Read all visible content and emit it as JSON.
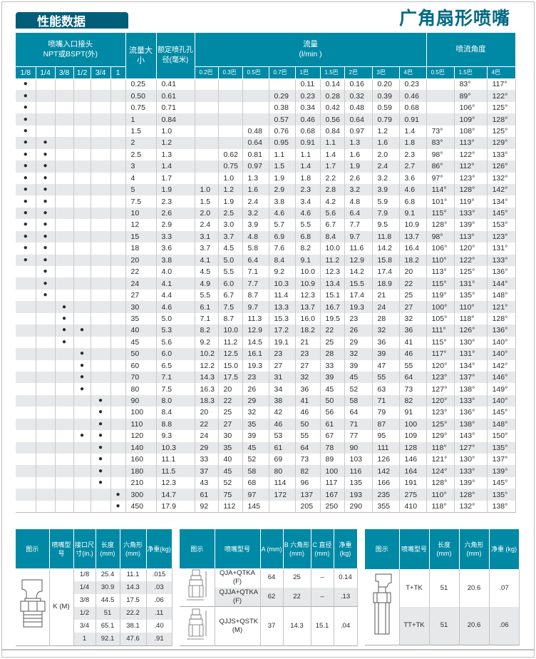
{
  "header": {
    "section_tab": "性能数据",
    "product_title": "广角扇形喷嘴"
  },
  "colors": {
    "header_teal": "#0089a5",
    "tab_dark": "#005e78",
    "title_teal": "#006a82",
    "row_alt": "#e7e8ea"
  },
  "main": {
    "inlet_header": "喷嘴入口接头",
    "inlet_header2": "NPT或BSPT(外)",
    "capacity_header": "流量大小",
    "orifice_header": "额定喷孔孔径(毫米)",
    "flow_header": "流量",
    "flow_unit": "(l/min )",
    "angle_header": "喷流角度",
    "inlet_sizes": [
      "1/8",
      "1/4",
      "3/8",
      "1/2",
      "3/4",
      "1"
    ],
    "flow_pressures": [
      "0.2巴",
      "0.3巴",
      "0.5巴",
      "0.7巴",
      "1巴",
      "1.5巴",
      "2巴",
      "3巴",
      "4巴"
    ],
    "angle_pressures": [
      "0.5巴",
      "1.5巴",
      "4巴"
    ],
    "dot_symbol": "●",
    "rows": [
      {
        "inlet": [
          1,
          0,
          0,
          0,
          0,
          0
        ],
        "size": "0.25",
        "orifice": "0.41",
        "flow": [
          "",
          "",
          "",
          "",
          "0.11",
          "0.14",
          "0.16",
          "0.20",
          "0.23"
        ],
        "angle": [
          "",
          "83°",
          "117°"
        ]
      },
      {
        "inlet": [
          1,
          0,
          0,
          0,
          0,
          0
        ],
        "size": "0.50",
        "orifice": "0.61",
        "flow": [
          "",
          "",
          "",
          "0.29",
          "0.23",
          "0.28",
          "0.32",
          "0.39",
          "0.46"
        ],
        "angle": [
          "",
          "89°",
          "122°"
        ]
      },
      {
        "inlet": [
          1,
          0,
          0,
          0,
          0,
          0
        ],
        "size": "0.75",
        "orifice": "0.71",
        "flow": [
          "",
          "",
          "",
          "0.38",
          "0.34",
          "0.42",
          "0.48",
          "0.59",
          "0.68"
        ],
        "angle": [
          "",
          "106°",
          "125°"
        ]
      },
      {
        "inlet": [
          1,
          0,
          0,
          0,
          0,
          0
        ],
        "size": "1",
        "orifice": "0.84",
        "flow": [
          "",
          "",
          "",
          "0.57",
          "0.46",
          "0.56",
          "0.64",
          "0.79",
          "0.91"
        ],
        "angle": [
          "",
          "109°",
          "128°"
        ]
      },
      {
        "inlet": [
          1,
          0,
          0,
          0,
          0,
          0
        ],
        "size": "1.5",
        "orifice": "1.0",
        "flow": [
          "",
          "",
          "0.48",
          "0.76",
          "0.68",
          "0.84",
          "0.97",
          "1.2",
          "1.4"
        ],
        "angle": [
          "73°",
          "108°",
          "125°"
        ]
      },
      {
        "inlet": [
          1,
          1,
          0,
          0,
          0,
          0
        ],
        "size": "2",
        "orifice": "1.2",
        "flow": [
          "",
          "",
          "0.64",
          "0.95",
          "0.91",
          "1.1",
          "1.3",
          "1.6",
          "1.8"
        ],
        "angle": [
          "83°",
          "113°",
          "129°"
        ]
      },
      {
        "inlet": [
          1,
          1,
          0,
          0,
          0,
          0
        ],
        "size": "2.5",
        "orifice": "1.3",
        "flow": [
          "",
          "0.62",
          "0.81",
          "1.1",
          "1.1",
          "1.4",
          "1.6",
          "2.0",
          "2.3"
        ],
        "angle": [
          "98°",
          "122°",
          "133°"
        ]
      },
      {
        "inlet": [
          1,
          1,
          0,
          0,
          0,
          0
        ],
        "size": "3",
        "orifice": "1.4",
        "flow": [
          "",
          "0.75",
          "0.97",
          "1.5",
          "1.4",
          "1.7",
          "1.9",
          "2.4",
          "2.7"
        ],
        "angle": [
          "86°",
          "112°",
          "126°"
        ]
      },
      {
        "inlet": [
          1,
          1,
          0,
          0,
          0,
          0
        ],
        "size": "4",
        "orifice": "1.7",
        "flow": [
          "",
          "1.0",
          "1.3",
          "1.9",
          "1.8",
          "2.2",
          "2.6",
          "3.2",
          "3.6"
        ],
        "angle": [
          "97°",
          "123°",
          "132°"
        ]
      },
      {
        "inlet": [
          1,
          1,
          0,
          0,
          0,
          0
        ],
        "size": "5",
        "orifice": "1.9",
        "flow": [
          "1.0",
          "1.2",
          "1.6",
          "2.9",
          "2.3",
          "2.8",
          "3.2",
          "3.9",
          "4.6"
        ],
        "angle": [
          "114°",
          "128°",
          "142°"
        ]
      },
      {
        "inlet": [
          1,
          1,
          0,
          0,
          0,
          0
        ],
        "size": "7.5",
        "orifice": "2.3",
        "flow": [
          "1.5",
          "1.9",
          "2.4",
          "3.8",
          "3.4",
          "4.2",
          "4.8",
          "5.9",
          "6.8"
        ],
        "angle": [
          "101°",
          "119°",
          "134°"
        ]
      },
      {
        "inlet": [
          1,
          1,
          0,
          0,
          0,
          0
        ],
        "size": "10",
        "orifice": "2.6",
        "flow": [
          "2.0",
          "2.5",
          "3.2",
          "4.6",
          "4.6",
          "5.6",
          "6.4",
          "7.9",
          "9.1"
        ],
        "angle": [
          "115°",
          "133°",
          "145°"
        ]
      },
      {
        "inlet": [
          1,
          1,
          0,
          0,
          0,
          0
        ],
        "size": "12",
        "orifice": "2.9",
        "flow": [
          "2.4",
          "3.0",
          "3.9",
          "5.7",
          "5.5",
          "6.7",
          "7.7",
          "9.5",
          "10.9"
        ],
        "angle": [
          "128°",
          "139°",
          "153°"
        ]
      },
      {
        "inlet": [
          1,
          1,
          0,
          0,
          0,
          0
        ],
        "size": "15",
        "orifice": "3.3",
        "flow": [
          "3.1",
          "3.7",
          "4.8",
          "6.9",
          "6.8",
          "8.4",
          "9.7",
          "11.8",
          "13.7"
        ],
        "angle": [
          "98°",
          "113°",
          "123°"
        ]
      },
      {
        "inlet": [
          1,
          1,
          0,
          0,
          0,
          0
        ],
        "size": "18",
        "orifice": "3.6",
        "flow": [
          "3.7",
          "4.5",
          "5.8",
          "7.6",
          "8.2",
          "10.0",
          "11.6",
          "14.2",
          "16.4"
        ],
        "angle": [
          "106°",
          "120°",
          "131°"
        ]
      },
      {
        "inlet": [
          1,
          1,
          0,
          0,
          0,
          0
        ],
        "size": "20",
        "orifice": "3.8",
        "flow": [
          "4.1",
          "5.0",
          "6.4",
          "8.4",
          "9.1",
          "11.2",
          "12.9",
          "15.8",
          "18.2"
        ],
        "angle": [
          "110°",
          "122°",
          "133°"
        ]
      },
      {
        "inlet": [
          0,
          1,
          0,
          0,
          0,
          0
        ],
        "size": "22",
        "orifice": "4.0",
        "flow": [
          "4.5",
          "5.5",
          "7.1",
          "9.2",
          "10.0",
          "12.3",
          "14.2",
          "17.4",
          "20"
        ],
        "angle": [
          "113°",
          "125°",
          "136°"
        ]
      },
      {
        "inlet": [
          0,
          1,
          0,
          0,
          0,
          0
        ],
        "size": "24",
        "orifice": "4.1",
        "flow": [
          "4.9",
          "6.0",
          "7.7",
          "10.3",
          "10.9",
          "13.4",
          "15.5",
          "18.9",
          "22"
        ],
        "angle": [
          "115°",
          "131°",
          "144°"
        ]
      },
      {
        "inlet": [
          0,
          1,
          0,
          0,
          0,
          0
        ],
        "size": "27",
        "orifice": "4.4",
        "flow": [
          "5.5",
          "6.7",
          "8.7",
          "11.4",
          "12.3",
          "15.1",
          "17.4",
          "21",
          "25"
        ],
        "angle": [
          "119°",
          "135°",
          "148°"
        ]
      },
      {
        "inlet": [
          0,
          0,
          1,
          0,
          0,
          0
        ],
        "size": "30",
        "orifice": "4.6",
        "flow": [
          "6.1",
          "7.5",
          "9.7",
          "13.3",
          "13.7",
          "16.7",
          "19.3",
          "24",
          "27"
        ],
        "angle": [
          "100°",
          "110°",
          "121°"
        ]
      },
      {
        "inlet": [
          0,
          0,
          1,
          0,
          0,
          0
        ],
        "size": "35",
        "orifice": "5.0",
        "flow": [
          "7.1",
          "8.7",
          "11.3",
          "15.3",
          "16.0",
          "19.5",
          "23",
          "28",
          "32"
        ],
        "angle": [
          "105°",
          "118°",
          "128°"
        ]
      },
      {
        "inlet": [
          0,
          0,
          1,
          1,
          0,
          0
        ],
        "size": "40",
        "orifice": "5.3",
        "flow": [
          "8.2",
          "10.0",
          "12.9",
          "17.2",
          "18.2",
          "22",
          "26",
          "32",
          "36"
        ],
        "angle": [
          "111°",
          "126°",
          "136°"
        ]
      },
      {
        "inlet": [
          0,
          0,
          1,
          0,
          0,
          0
        ],
        "size": "45",
        "orifice": "5.6",
        "flow": [
          "9.2",
          "11.2",
          "14.5",
          "19.1",
          "21",
          "25",
          "29",
          "36",
          "41"
        ],
        "angle": [
          "115°",
          "130°",
          "140°"
        ]
      },
      {
        "inlet": [
          0,
          0,
          0,
          1,
          0,
          0
        ],
        "size": "50",
        "orifice": "6.0",
        "flow": [
          "10.2",
          "12.5",
          "16.1",
          "23",
          "23",
          "28",
          "32",
          "39",
          "46"
        ],
        "angle": [
          "117°",
          "131°",
          "140°"
        ]
      },
      {
        "inlet": [
          0,
          0,
          0,
          1,
          0,
          0
        ],
        "size": "60",
        "orifice": "6.5",
        "flow": [
          "12.2",
          "15.0",
          "19.3",
          "27",
          "27",
          "33",
          "39",
          "47",
          "55"
        ],
        "angle": [
          "120°",
          "134°",
          "142°"
        ]
      },
      {
        "inlet": [
          0,
          0,
          0,
          1,
          0,
          0
        ],
        "size": "70",
        "orifice": "7.1",
        "flow": [
          "14.3",
          "17.5",
          "23",
          "31",
          "32",
          "39",
          "45",
          "55",
          "64"
        ],
        "angle": [
          "123°",
          "137°",
          "146°"
        ]
      },
      {
        "inlet": [
          0,
          0,
          0,
          1,
          0,
          0
        ],
        "size": "80",
        "orifice": "7.5",
        "flow": [
          "16.3",
          "20",
          "26",
          "34",
          "36",
          "45",
          "52",
          "63",
          "73"
        ],
        "angle": [
          "127°",
          "138°",
          "149°"
        ]
      },
      {
        "inlet": [
          0,
          0,
          0,
          0,
          1,
          0
        ],
        "size": "90",
        "orifice": "8.0",
        "flow": [
          "18.3",
          "22",
          "29",
          "38",
          "41",
          "50",
          "58",
          "71",
          "82"
        ],
        "angle": [
          "120°",
          "133°",
          "140°"
        ]
      },
      {
        "inlet": [
          0,
          0,
          0,
          0,
          1,
          0
        ],
        "size": "100",
        "orifice": "8.4",
        "flow": [
          "20",
          "25",
          "32",
          "42",
          "46",
          "56",
          "64",
          "79",
          "91"
        ],
        "angle": [
          "123°",
          "136°",
          "145°"
        ]
      },
      {
        "inlet": [
          0,
          0,
          0,
          0,
          1,
          0
        ],
        "size": "110",
        "orifice": "8.8",
        "flow": [
          "22",
          "27",
          "35",
          "46",
          "50",
          "61",
          "71",
          "87",
          "100"
        ],
        "angle": [
          "125°",
          "138°",
          "148°"
        ]
      },
      {
        "inlet": [
          0,
          0,
          0,
          1,
          1,
          0
        ],
        "size": "120",
        "orifice": "9.3",
        "flow": [
          "24",
          "30",
          "39",
          "53",
          "55",
          "67",
          "77",
          "95",
          "109"
        ],
        "angle": [
          "129°",
          "143°",
          "150°"
        ]
      },
      {
        "inlet": [
          0,
          0,
          0,
          0,
          1,
          0
        ],
        "size": "140",
        "orifice": "10.3",
        "flow": [
          "29",
          "35",
          "45",
          "61",
          "64",
          "78",
          "90",
          "111",
          "128"
        ],
        "angle": [
          "118°",
          "127°",
          "135°"
        ]
      },
      {
        "inlet": [
          0,
          0,
          0,
          0,
          1,
          0
        ],
        "size": "160",
        "orifice": "11.1",
        "flow": [
          "33",
          "40",
          "52",
          "69",
          "73",
          "89",
          "103",
          "126",
          "146"
        ],
        "angle": [
          "121°",
          "130°",
          "137°"
        ]
      },
      {
        "inlet": [
          0,
          0,
          0,
          0,
          1,
          0
        ],
        "size": "180",
        "orifice": "11.5",
        "flow": [
          "37",
          "45",
          "58",
          "80",
          "82",
          "100",
          "116",
          "142",
          "164"
        ],
        "angle": [
          "124°",
          "133°",
          "139°"
        ]
      },
      {
        "inlet": [
          0,
          0,
          0,
          0,
          1,
          0
        ],
        "size": "210",
        "orifice": "12.3",
        "flow": [
          "43",
          "52",
          "68",
          "114",
          "96",
          "117",
          "135",
          "166",
          "191"
        ],
        "angle": [
          "128°",
          "139°",
          "145°"
        ]
      },
      {
        "inlet": [
          0,
          0,
          0,
          0,
          0,
          1
        ],
        "size": "300",
        "orifice": "14.7",
        "flow": [
          "61",
          "75",
          "97",
          "172",
          "137",
          "167",
          "193",
          "235",
          "275"
        ],
        "angle": [
          "110°",
          "128°",
          "135°"
        ]
      },
      {
        "inlet": [
          0,
          0,
          0,
          0,
          0,
          1
        ],
        "size": "450",
        "orifice": "17.9",
        "flow": [
          "92",
          "112",
          "145",
          "",
          "205",
          "250",
          "290",
          "355",
          "410"
        ],
        "angle": [
          "118°",
          "132°",
          "138°"
        ]
      }
    ]
  },
  "dims_k": {
    "headers": [
      "图示",
      "喷嘴型号",
      "接口尺寸(in.)",
      "长度(mm)",
      "六角形(mm)",
      "净重(kg)"
    ],
    "model": "K (M)",
    "rows": [
      [
        "1/8",
        "25.4",
        "11.1",
        ".015"
      ],
      [
        "1/4",
        "30.9",
        "14.3",
        ".03"
      ],
      [
        "3/8",
        "44.5",
        "17.5",
        ".06"
      ],
      [
        "1/2",
        "51",
        "22.2",
        ".11"
      ],
      [
        "3/4",
        "65.1",
        "38.1",
        ".40"
      ],
      [
        "1",
        "92.1",
        "47.6",
        ".91"
      ]
    ]
  },
  "dims_q": {
    "headers": [
      "图示",
      "喷嘴型号",
      "A (mm)",
      "B 六角形 (mm)",
      "C 直径 (mm)",
      "净重 (kg)"
    ],
    "rows": [
      [
        "QJA+QTKA (F)",
        "64",
        "25",
        "–",
        "0.14"
      ],
      [
        "QJJA+QTKA (F)",
        "62",
        "22",
        "–",
        ".13"
      ],
      [
        "QJJS+QSTK (M)",
        "37",
        "14.3",
        "15.1",
        ".04"
      ]
    ]
  },
  "dims_t": {
    "headers": [
      "图示",
      "喷嘴型号",
      "长度 (mm)",
      "六角形 (mm)",
      "净重 (kg)"
    ],
    "rows": [
      [
        "T+TK",
        "51",
        "20.6",
        ".07"
      ],
      [
        "TT+TK",
        "51",
        "20.6",
        ".06"
      ]
    ]
  }
}
